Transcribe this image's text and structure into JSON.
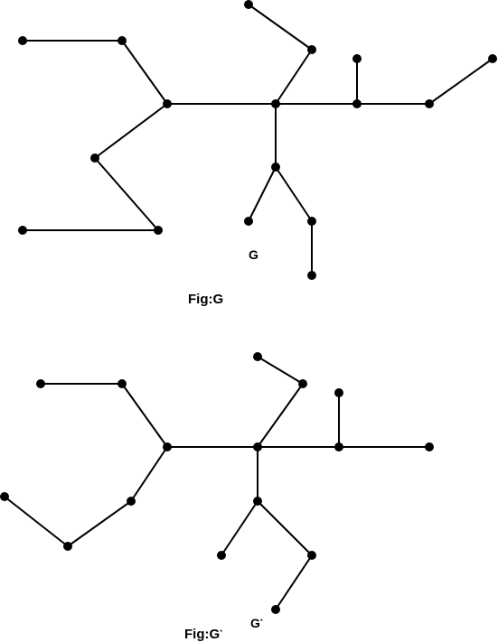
{
  "graph_g": {
    "label": "G",
    "caption": "Fig:G"
  },
  "graph_g_star": {
    "label": "G",
    "label_sup": "*",
    "caption": "Fig:G",
    "caption_sup": "*"
  }
}
